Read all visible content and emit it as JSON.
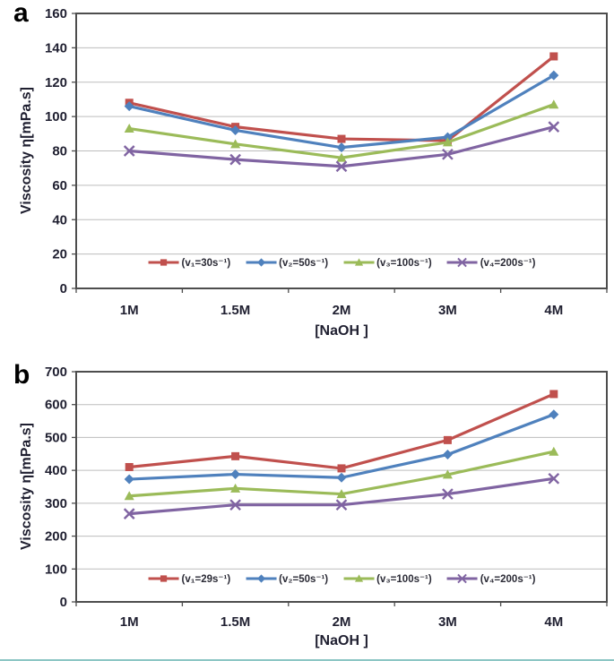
{
  "colors": {
    "series_red": "#C0504D",
    "series_blue": "#4F81BD",
    "series_green": "#9BBB59",
    "series_purple": "#8064A2",
    "gridline": "#bdbdbd",
    "plot_border": "#4d4d4d",
    "axis_text": "#1f1f30",
    "bottom_edge_teal": "#4fa8a4"
  },
  "chart_data": [
    {
      "type": "line",
      "panel_label": "a",
      "title": "",
      "categories": [
        "1M",
        "1.5M",
        "2M",
        "3M",
        "4M"
      ],
      "xlabel": "[NaOH ]",
      "ylabel": "Viscosity η[mPa.s]",
      "ylim": [
        0,
        160
      ],
      "yticks": [
        0,
        20,
        40,
        60,
        80,
        100,
        120,
        140,
        160
      ],
      "grid": true,
      "legend_position": "bottom-inside",
      "series": [
        {
          "name": "(v₁=30s⁻¹)",
          "marker": "square",
          "color": "#C0504D",
          "values": [
            108,
            94,
            87,
            86,
            135
          ]
        },
        {
          "name": "(v₂=50s⁻¹)",
          "marker": "diamond",
          "color": "#4F81BD",
          "values": [
            106,
            92,
            82,
            88,
            124
          ]
        },
        {
          "name": "(v₃=100s⁻¹)",
          "marker": "triangle",
          "color": "#9BBB59",
          "values": [
            93,
            84,
            76,
            85,
            107
          ]
        },
        {
          "name": "(v₄=200s⁻¹)",
          "marker": "x",
          "color": "#8064A2",
          "values": [
            80,
            75,
            71,
            78,
            94
          ]
        }
      ]
    },
    {
      "type": "line",
      "panel_label": "b",
      "title": "",
      "categories": [
        "1M",
        "1.5M",
        "2M",
        "3M",
        "4M"
      ],
      "xlabel": "[NaOH ]",
      "ylabel": "Viscosity η[mPa.s]",
      "ylim": [
        0,
        700
      ],
      "yticks": [
        0,
        100,
        200,
        300,
        400,
        500,
        600,
        700
      ],
      "grid": true,
      "legend_position": "bottom-inside",
      "series": [
        {
          "name": "(v₁=29s⁻¹)",
          "marker": "square",
          "color": "#C0504D",
          "values": [
            410,
            443,
            406,
            492,
            632
          ]
        },
        {
          "name": "(v₂=50s⁻¹)",
          "marker": "diamond",
          "color": "#4F81BD",
          "values": [
            373,
            388,
            378,
            448,
            570
          ]
        },
        {
          "name": "(v₃=100s⁻¹)",
          "marker": "triangle",
          "color": "#9BBB59",
          "values": [
            322,
            345,
            328,
            387,
            457
          ]
        },
        {
          "name": "(v₄=200s⁻¹)",
          "marker": "x",
          "color": "#8064A2",
          "values": [
            268,
            295,
            295,
            328,
            375
          ]
        }
      ]
    }
  ]
}
